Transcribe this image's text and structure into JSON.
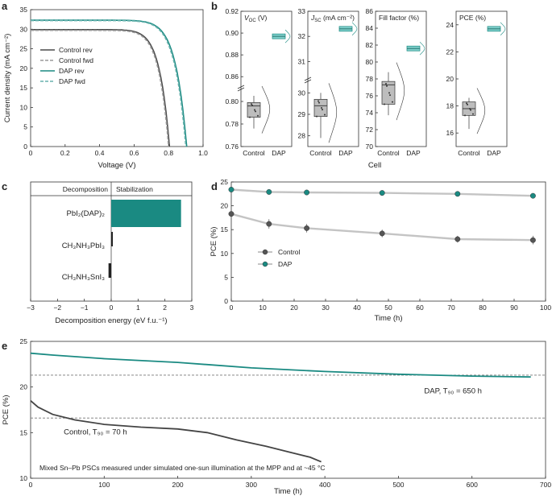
{
  "panel_labels": {
    "a": "a",
    "b": "b",
    "c": "c",
    "d": "d",
    "e": "e"
  },
  "chart_data": [
    {
      "id": "a",
      "type": "line",
      "xlabel": "Voltage (V)",
      "ylabel": "Current density (mA cm⁻²)",
      "xlim": [
        0,
        1.0
      ],
      "ylim": [
        0,
        35
      ],
      "xticks": [
        "0",
        "0.2",
        "0.4",
        "0.6",
        "0.8",
        "1.0"
      ],
      "yticks": [
        "0",
        "5",
        "10",
        "15",
        "20",
        "25",
        "30",
        "35"
      ],
      "series": [
        {
          "name": "Control rev",
          "color": "#4a4a4a",
          "dash": "solid",
          "jsc": 29.9,
          "voc": 0.805
        },
        {
          "name": "Control fwd",
          "color": "#9a9a9a",
          "dash": "dashed",
          "jsc": 29.7,
          "voc": 0.8
        },
        {
          "name": "DAP rev",
          "color": "#1a8a82",
          "dash": "solid",
          "jsc": 32.3,
          "voc": 0.905
        },
        {
          "name": "DAP fwd",
          "color": "#68b2ad",
          "dash": "dashed",
          "jsc": 32.2,
          "voc": 0.9
        }
      ]
    },
    {
      "id": "b",
      "type": "box",
      "xlabel": "Cell",
      "categories": [
        "Control",
        "DAP"
      ],
      "subplots": [
        {
          "title": "V",
          "sub": "OC",
          "unit": " (V)",
          "yticks": [
            "0.76",
            "0.78",
            "0.80",
            "0.86",
            "0.88",
            "0.90",
            "0.92"
          ],
          "broken": true,
          "control": {
            "min": 0.776,
            "q1": 0.786,
            "median": 0.796,
            "q3": 0.799,
            "max": 0.805
          },
          "dap_median": 0.897
        },
        {
          "title": "J",
          "sub": "SC",
          "unit": " (mA cm⁻²)",
          "yticks": [
            "28",
            "29",
            "30",
            "31",
            "32",
            "33"
          ],
          "broken": true,
          "control": {
            "min": 27.9,
            "q1": 28.9,
            "median": 29.4,
            "q3": 29.7,
            "max": 30.0
          },
          "dap_median": 32.3
        },
        {
          "title": "Fill factor (%)",
          "sub": "",
          "unit": "",
          "yticks": [
            "70",
            "72",
            "74",
            "76",
            "78",
            "80",
            "82",
            "84",
            "86"
          ],
          "broken": false,
          "control": {
            "min": 73.7,
            "q1": 75.0,
            "median": 77.3,
            "q3": 77.7,
            "max": 78.8
          },
          "dap_median": 81.6
        },
        {
          "title": "PCE (%)",
          "sub": "",
          "unit": "",
          "yticks": [
            "16",
            "18",
            "20",
            "22",
            "24"
          ],
          "broken": false,
          "control": {
            "min": 16.3,
            "q1": 17.3,
            "median": 17.8,
            "q3": 18.3,
            "max": 18.6
          },
          "dap_median": 23.7
        }
      ]
    },
    {
      "id": "c",
      "type": "bar",
      "orientation": "horizontal",
      "header_left": "Decomposition",
      "header_right": "Stabilization",
      "categories": [
        "PbI₂(DAP)₂",
        "CH₃NH₃PbI₃",
        "CH₃NH₃SnI₃"
      ],
      "values": [
        2.6,
        0.05,
        -0.1
      ],
      "xlabel": "Decomposition energy (eV f.u.⁻¹)",
      "xlim": [
        -3,
        3
      ],
      "xticks": [
        "−3",
        "−2",
        "−1",
        "0",
        "1",
        "2",
        "3"
      ]
    },
    {
      "id": "d",
      "type": "line",
      "xlabel": "Time (h)",
      "ylabel": "PCE (%)",
      "xlim": [
        0,
        100
      ],
      "ylim": [
        0,
        25
      ],
      "xticks": [
        "0",
        "10",
        "20",
        "30",
        "40",
        "50",
        "60",
        "70",
        "80",
        "90",
        "100"
      ],
      "yticks": [
        "0",
        "5",
        "10",
        "15",
        "20",
        "25"
      ],
      "series": [
        {
          "name": "Control",
          "color": "#555555",
          "x": [
            0,
            12,
            24,
            48,
            72,
            96
          ],
          "y": [
            18.3,
            16.2,
            15.3,
            14.2,
            13.0,
            12.8
          ],
          "err": [
            0.8,
            1.0,
            0.9,
            0.8,
            0.7,
            0.9
          ]
        },
        {
          "name": "DAP",
          "color": "#1a8a82",
          "x": [
            0,
            12,
            24,
            48,
            72,
            96
          ],
          "y": [
            23.4,
            22.9,
            22.8,
            22.7,
            22.5,
            22.1
          ],
          "err": [
            0.2,
            0.2,
            0.2,
            0.2,
            0.3,
            0.3
          ]
        }
      ]
    },
    {
      "id": "e",
      "type": "line",
      "xlabel": "Time (h)",
      "ylabel": "PCE (%)",
      "xlim": [
        0,
        700
      ],
      "ylim": [
        10,
        25
      ],
      "xticks": [
        "0",
        "100",
        "200",
        "300",
        "400",
        "500",
        "600",
        "700"
      ],
      "yticks": [
        "10",
        "15",
        "20",
        "25"
      ],
      "series": [
        {
          "name": "Control",
          "color": "#444444",
          "x": [
            0,
            10,
            30,
            60,
            100,
            150,
            200,
            240,
            280,
            320,
            350,
            380,
            395
          ],
          "y": [
            18.5,
            17.8,
            17.0,
            16.4,
            15.9,
            15.6,
            15.4,
            15.0,
            14.2,
            13.5,
            12.9,
            12.3,
            11.8
          ]
        },
        {
          "name": "DAP",
          "color": "#1a8a82",
          "x": [
            0,
            30,
            100,
            200,
            300,
            400,
            500,
            600,
            680
          ],
          "y": [
            23.7,
            23.5,
            23.1,
            22.7,
            22.1,
            21.7,
            21.4,
            21.2,
            21.1
          ]
        }
      ],
      "thresholds": [
        21.3,
        16.6
      ],
      "annotations": {
        "dap": "DAP, T₉₀ = 650 h",
        "control": "Control, T₉₀ = 70 h",
        "note": "Mixed Sn–Pb PSCs measured under simulated one-sun illumination at the MPP and at ~45 °C"
      }
    }
  ]
}
